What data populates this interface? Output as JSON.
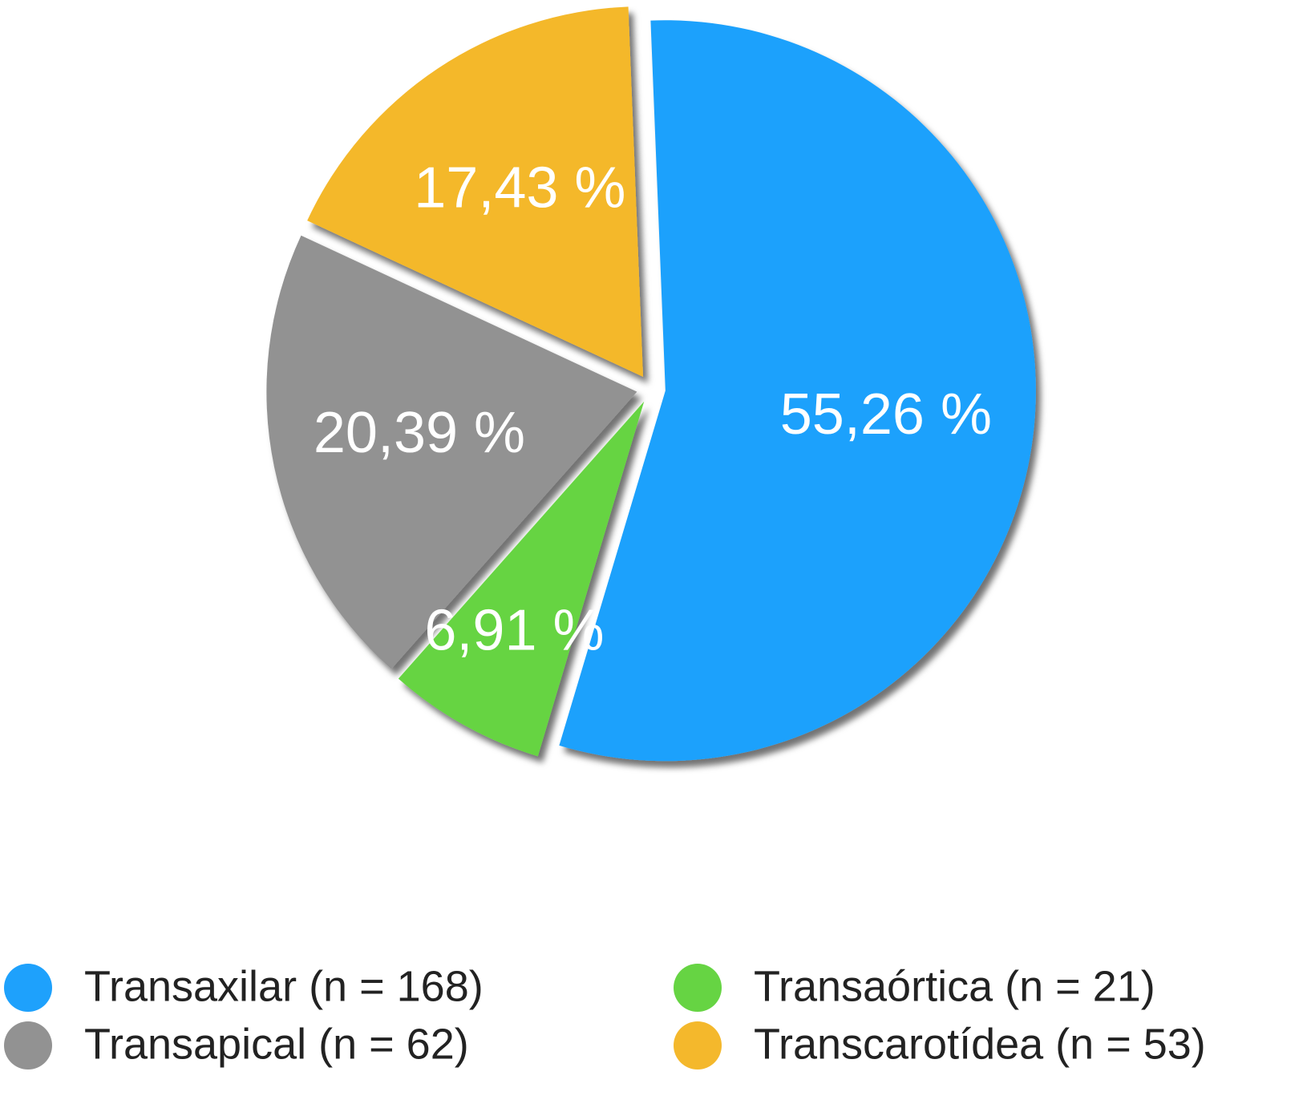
{
  "chart_data": {
    "type": "pie",
    "categories": [
      "Transaxilar (n = 168)",
      "Transaórtica (n = 21)",
      "Transapical (n = 62)",
      "Transcarotídea (n = 53)"
    ],
    "values": [
      55.26,
      6.91,
      20.39,
      17.43
    ],
    "value_labels": [
      "55,26 %",
      "6,91 %",
      "20,39 %",
      "17,43 %"
    ],
    "colors": [
      "#1ea1fc",
      "#66d443",
      "#929292",
      "#f4b82c"
    ]
  }
}
